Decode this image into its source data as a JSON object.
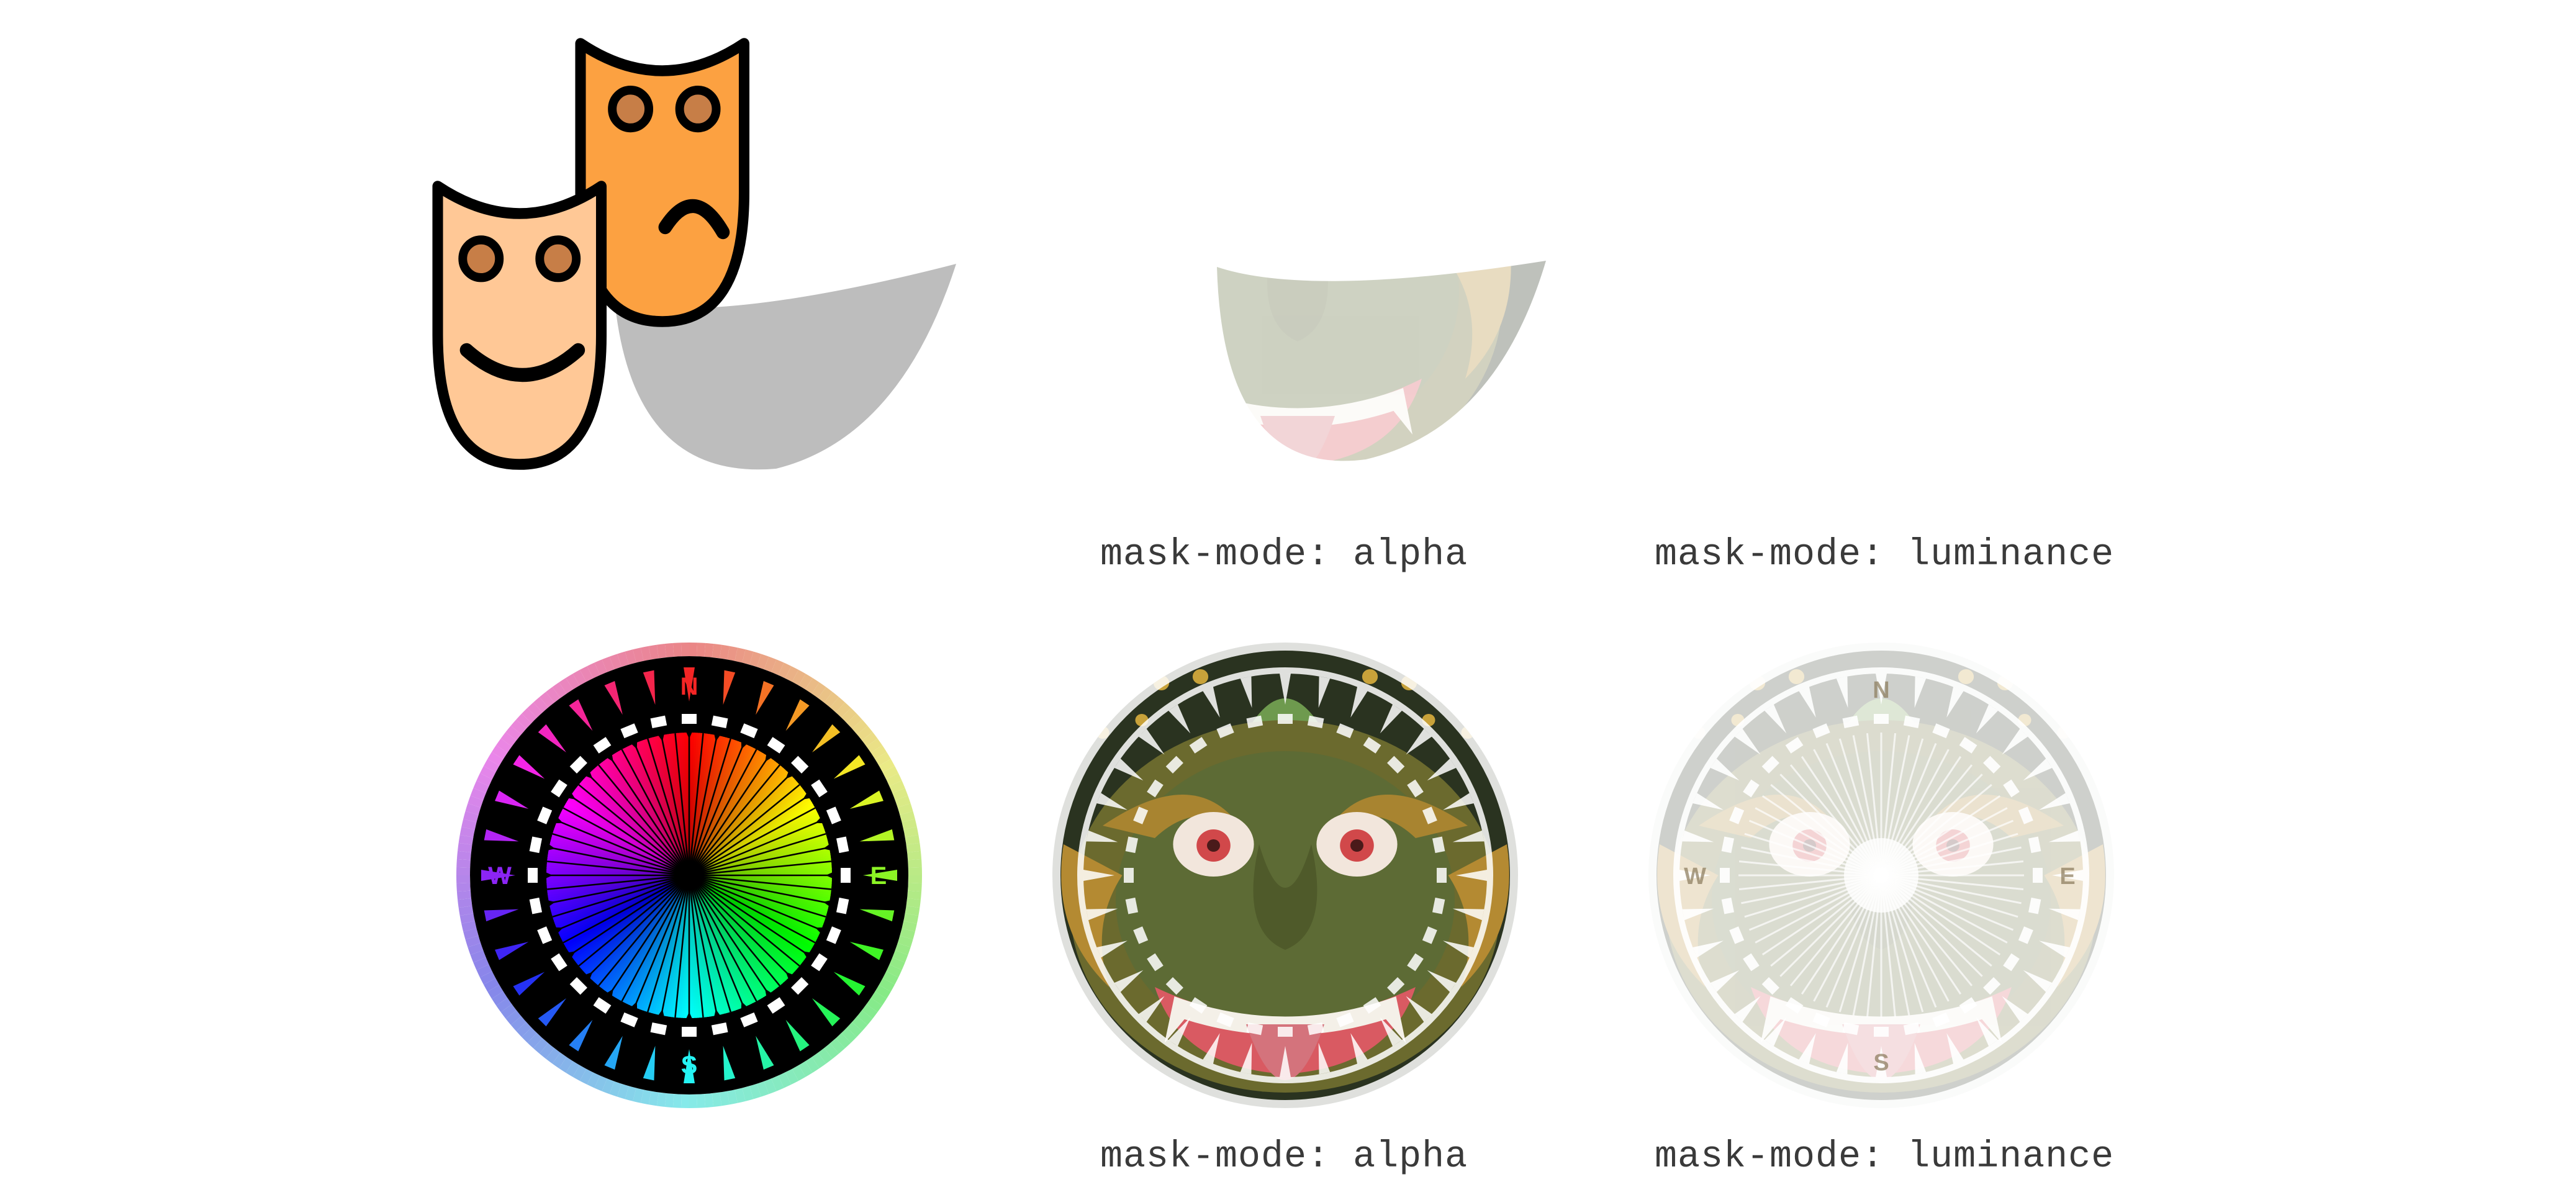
{
  "captions": {
    "masks_alpha": "mask-mode: alpha",
    "masks_luminance": "mask-mode: luminance",
    "compass_alpha": "mask-mode: alpha",
    "compass_luminance": "mask-mode: luminance"
  },
  "compass": {
    "letters": [
      "N",
      "E",
      "S",
      "W"
    ]
  },
  "images": {
    "masks_source": "theater-masks-icon",
    "compass_source": "color-wheel-compass",
    "masked_photo": "carved-mask-photo"
  },
  "colors": {
    "mask_front": "#FFC896",
    "mask_back": "#FCA141",
    "eye": "#C77E47",
    "outline": "#000000",
    "shadow": "#BDBDBD",
    "caption_text": "#3A3A3A"
  }
}
